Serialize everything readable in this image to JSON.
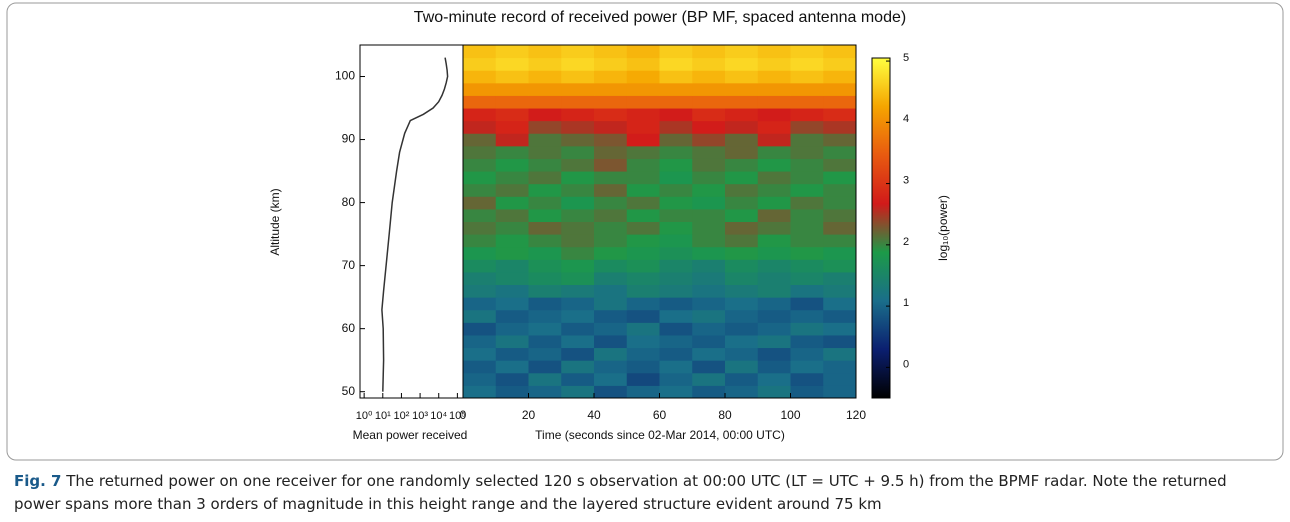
{
  "chart_data": [
    {
      "type": "line",
      "xlabel": "Mean power received",
      "ylabel": "Altitude (km)",
      "color": "#333333",
      "y": [
        50,
        55,
        60,
        63,
        66,
        70,
        75,
        80,
        85,
        88,
        91,
        93,
        94,
        95,
        96,
        97,
        98,
        99,
        100,
        101,
        102,
        103
      ],
      "values": [
        10,
        11,
        10.5,
        9,
        11,
        15,
        22,
        32,
        55,
        80,
        150,
        300,
        1500,
        5000,
        10000,
        15000,
        20000,
        25000,
        30000,
        28000,
        25000,
        22000
      ],
      "xscale": "log",
      "xlim": [
        0.6,
        200000
      ],
      "xticks": [
        {
          "value": 1,
          "label": "10⁰"
        },
        {
          "value": 10,
          "label": "10¹"
        },
        {
          "value": 100,
          "label": "10²"
        },
        {
          "value": 1000,
          "label": "10³"
        },
        {
          "value": 10000,
          "label": "10⁴"
        },
        {
          "value": 100000,
          "label": "10⁵"
        }
      ],
      "ylim": [
        49,
        105
      ],
      "yticks": [
        50,
        60,
        70,
        80,
        90,
        100
      ]
    },
    {
      "type": "heatmap",
      "title": "Two-minute record of received power (BP MF, spaced antenna mode)",
      "xlabel": "Time (seconds since 02-Mar 2014, 00:00 UTC)",
      "clabel": "log₁₀(power)",
      "x_bins": [
        0,
        10,
        20,
        30,
        40,
        50,
        60,
        70,
        80,
        90,
        100,
        110,
        120
      ],
      "y_bins": [
        49,
        51,
        53,
        55,
        57,
        59,
        61,
        63,
        65,
        67,
        69,
        71,
        73,
        75,
        77,
        79,
        81,
        83,
        85,
        87,
        89,
        91,
        93,
        95,
        97,
        99,
        101,
        103,
        105
      ],
      "z": [
        [
          1.1,
          0.9,
          1.0,
          1.2,
          0.8,
          1.0,
          1.1,
          0.9,
          1.0,
          1.2,
          0.9,
          1.0
        ],
        [
          1.0,
          0.8,
          1.2,
          0.9,
          1.1,
          0.7,
          1.0,
          1.2,
          0.9,
          1.1,
          0.8,
          1.0
        ],
        [
          0.9,
          1.1,
          0.8,
          1.2,
          1.0,
          0.9,
          1.1,
          0.8,
          1.2,
          0.9,
          1.1,
          1.0
        ],
        [
          1.1,
          0.9,
          1.0,
          0.8,
          1.2,
          1.0,
          0.9,
          1.1,
          1.0,
          0.8,
          1.0,
          1.2
        ],
        [
          1.0,
          1.2,
          0.9,
          1.1,
          0.8,
          1.1,
          1.0,
          0.9,
          1.1,
          1.2,
          0.9,
          0.8
        ],
        [
          0.8,
          1.0,
          1.1,
          0.9,
          1.0,
          1.2,
          0.8,
          1.0,
          0.9,
          1.0,
          1.2,
          1.1
        ],
        [
          1.2,
          0.9,
          1.0,
          1.1,
          0.9,
          0.8,
          1.1,
          1.2,
          1.0,
          0.9,
          1.0,
          0.9
        ],
        [
          1.0,
          1.1,
          0.9,
          1.0,
          1.2,
          1.0,
          0.9,
          1.0,
          1.1,
          1.0,
          0.8,
          1.1
        ],
        [
          1.3,
          1.2,
          1.4,
          1.3,
          1.2,
          1.4,
          1.3,
          1.2,
          1.3,
          1.4,
          1.2,
          1.3
        ],
        [
          1.4,
          1.5,
          1.6,
          1.7,
          1.4,
          1.5,
          1.4,
          1.3,
          1.5,
          1.4,
          1.5,
          1.4
        ],
        [
          1.6,
          1.5,
          1.7,
          1.8,
          1.6,
          1.7,
          1.5,
          1.4,
          1.6,
          1.5,
          1.6,
          1.7
        ],
        [
          1.8,
          1.9,
          1.8,
          2.0,
          1.9,
          1.8,
          1.7,
          1.8,
          1.9,
          1.8,
          1.9,
          1.8
        ],
        [
          2.0,
          1.9,
          2.0,
          2.1,
          2.0,
          1.9,
          1.8,
          2.0,
          2.1,
          1.9,
          2.0,
          2.0
        ],
        [
          2.1,
          2.0,
          2.2,
          2.1,
          2.0,
          2.1,
          1.9,
          2.0,
          2.2,
          2.1,
          2.0,
          2.2
        ],
        [
          2.0,
          2.1,
          1.9,
          2.0,
          2.1,
          1.9,
          2.0,
          2.0,
          1.9,
          2.2,
          2.0,
          2.1
        ],
        [
          2.2,
          1.9,
          2.0,
          1.8,
          2.0,
          2.1,
          1.9,
          1.8,
          2.0,
          1.9,
          2.1,
          2.0
        ],
        [
          2.0,
          2.1,
          1.9,
          2.0,
          2.2,
          1.9,
          2.0,
          1.9,
          2.1,
          2.0,
          1.9,
          2.0
        ],
        [
          1.9,
          2.0,
          2.1,
          1.9,
          2.0,
          2.0,
          1.8,
          2.0,
          1.9,
          2.1,
          2.0,
          1.9
        ],
        [
          2.0,
          1.9,
          2.0,
          2.1,
          2.3,
          2.0,
          1.9,
          2.1,
          2.0,
          1.9,
          2.0,
          2.1
        ],
        [
          2.1,
          2.0,
          2.1,
          2.0,
          2.2,
          2.1,
          2.0,
          2.1,
          2.2,
          2.0,
          2.1,
          2.0
        ],
        [
          2.2,
          2.6,
          2.1,
          2.2,
          2.3,
          2.7,
          2.2,
          2.4,
          2.2,
          2.6,
          2.1,
          2.2
        ],
        [
          2.6,
          2.8,
          2.4,
          2.5,
          2.6,
          2.8,
          2.5,
          2.7,
          2.6,
          2.8,
          2.4,
          2.5
        ],
        [
          2.8,
          2.9,
          2.7,
          2.8,
          2.9,
          2.8,
          2.7,
          2.9,
          2.8,
          2.7,
          2.8,
          2.9
        ],
        [
          3.6,
          3.6,
          3.6,
          3.6,
          3.6,
          3.6,
          3.6,
          3.6,
          3.6,
          3.6,
          3.6,
          3.6
        ],
        [
          4.1,
          4.1,
          4.1,
          4.1,
          4.1,
          4.1,
          4.1,
          4.1,
          4.1,
          4.1,
          4.1,
          4.1
        ],
        [
          4.4,
          4.5,
          4.4,
          4.5,
          4.4,
          4.3,
          4.5,
          4.4,
          4.5,
          4.4,
          4.5,
          4.4
        ],
        [
          4.6,
          4.7,
          4.6,
          4.7,
          4.6,
          4.5,
          4.7,
          4.6,
          4.7,
          4.6,
          4.7,
          4.6
        ],
        [
          4.5,
          4.6,
          4.5,
          4.6,
          4.5,
          4.4,
          4.6,
          4.5,
          4.6,
          4.5,
          4.6,
          4.5
        ]
      ],
      "xlim": [
        0,
        120
      ],
      "xticks": [
        0,
        20,
        40,
        60,
        80,
        100,
        120
      ],
      "ylim": [
        49,
        105
      ],
      "clim": [
        -0.5,
        5.05
      ],
      "cticks": [
        0,
        1,
        2,
        3,
        4,
        5
      ],
      "colormap": [
        "#000000",
        "#0b1f70",
        "#1a6e8a",
        "#1c9a48",
        "#d11a1a",
        "#e85a10",
        "#f5a500",
        "#ffff40"
      ]
    }
  ],
  "caption": {
    "label": "Fig. 7",
    "text": "The returned power on one receiver for one randomly selected 120 s observation at 00:00 UTC (LT = UTC + 9.5 h) from the BPMF radar. Note the returned power spans more than 3 orders of magnitude in this height range and the layered structure evident around 75 km"
  }
}
